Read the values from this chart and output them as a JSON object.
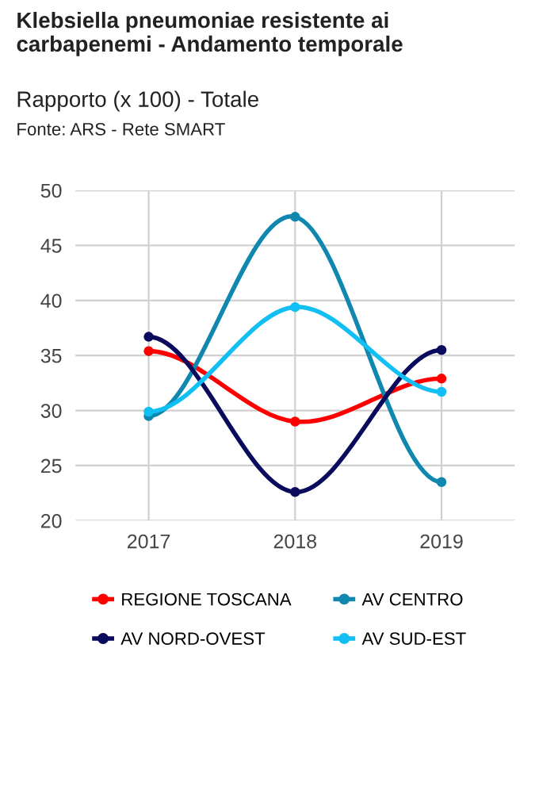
{
  "chart_data": {
    "type": "line",
    "title": "Klebsiella pneumoniae resistente ai\ncarbapenemi - Andamento temporale",
    "subtitle": "Rapporto (x 100) - Totale",
    "annotations": [
      "Fonte: ARS - Rete SMART"
    ],
    "categories": [
      "2017",
      "2018",
      "2019"
    ],
    "series": [
      {
        "name": "REGIONE TOSCANA",
        "color": "#ff0000",
        "values": [
          35.4,
          29.0,
          32.9
        ]
      },
      {
        "name": "AV CENTRO",
        "color": "#0f87ae",
        "values": [
          29.5,
          47.6,
          23.5
        ]
      },
      {
        "name": "AV NORD-OVEST",
        "color": "#0b0b5e",
        "values": [
          36.7,
          22.6,
          35.5
        ]
      },
      {
        "name": "AV SUD-EST",
        "color": "#12bff2",
        "values": [
          29.9,
          39.4,
          31.7
        ]
      }
    ],
    "ylim": [
      20,
      50
    ],
    "yticks": [
      20,
      25,
      30,
      35,
      40,
      45,
      50
    ],
    "grid": true,
    "legend": "bottom",
    "marker": "circle",
    "line_style": "solid"
  }
}
